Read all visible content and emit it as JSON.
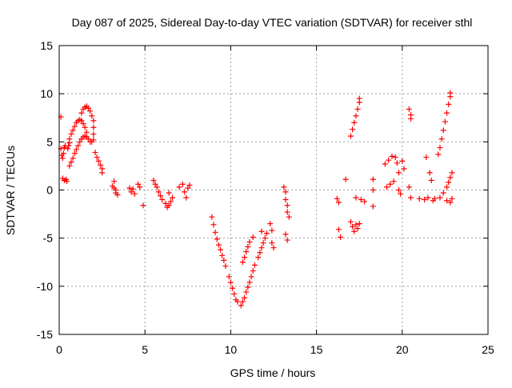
{
  "chart_data": {
    "type": "scatter",
    "title": "Day 087 of 2025, Sidereal Day-to-day VTEC variation (SDTVAR) for receiver sthl",
    "xlabel": "GPS time / hours",
    "ylabel": "SDTVAR / TECUs",
    "xlim": [
      0,
      25
    ],
    "ylim": [
      -15,
      15
    ],
    "xticks": [
      0,
      5,
      10,
      15,
      20,
      25
    ],
    "yticks": [
      -15,
      -10,
      -5,
      0,
      5,
      10,
      15
    ],
    "xtick_labels": [
      "0",
      "5",
      "10",
      "15",
      "20",
      "25"
    ],
    "ytick_labels": [
      "-15",
      "-10",
      "-5",
      "0",
      "5",
      "10",
      "15"
    ],
    "grid": true,
    "marker": "+",
    "color": "#ff0000",
    "series": [
      {
        "name": "sthl",
        "points": [
          [
            0.1,
            7.6
          ],
          [
            0.1,
            4.3
          ],
          [
            0.15,
            3.6
          ],
          [
            0.2,
            3.3
          ],
          [
            0.25,
            3.8
          ],
          [
            0.3,
            4.4
          ],
          [
            0.35,
            4.6
          ],
          [
            0.2,
            1.2
          ],
          [
            0.3,
            1.0
          ],
          [
            0.4,
            1.1
          ],
          [
            0.45,
            0.9
          ],
          [
            0.5,
            4.3
          ],
          [
            0.55,
            4.6
          ],
          [
            0.6,
            4.9
          ],
          [
            0.6,
            2.5
          ],
          [
            0.7,
            2.9
          ],
          [
            0.8,
            3.3
          ],
          [
            0.9,
            3.8
          ],
          [
            1.0,
            4.2
          ],
          [
            1.1,
            4.6
          ],
          [
            1.2,
            5.0
          ],
          [
            1.3,
            5.3
          ],
          [
            1.4,
            5.5
          ],
          [
            1.5,
            5.6
          ],
          [
            1.6,
            5.5
          ],
          [
            1.7,
            5.3
          ],
          [
            1.8,
            5.0
          ],
          [
            1.9,
            5.0
          ],
          [
            0.6,
            5.3
          ],
          [
            0.7,
            5.8
          ],
          [
            0.8,
            6.2
          ],
          [
            0.9,
            6.6
          ],
          [
            1.0,
            7.0
          ],
          [
            1.1,
            7.2
          ],
          [
            1.2,
            7.3
          ],
          [
            1.3,
            7.2
          ],
          [
            1.4,
            6.9
          ],
          [
            1.5,
            6.5
          ],
          [
            1.6,
            6.0
          ],
          [
            1.3,
            8.0
          ],
          [
            1.4,
            8.4
          ],
          [
            1.5,
            8.6
          ],
          [
            1.6,
            8.7
          ],
          [
            1.7,
            8.5
          ],
          [
            1.8,
            8.2
          ],
          [
            1.9,
            7.7
          ],
          [
            2.0,
            7.2
          ],
          [
            2.0,
            6.5
          ],
          [
            2.0,
            5.8
          ],
          [
            2.0,
            5.2
          ],
          [
            2.1,
            3.9
          ],
          [
            2.2,
            3.4
          ],
          [
            2.3,
            3.0
          ],
          [
            2.4,
            2.6
          ],
          [
            2.5,
            2.2
          ],
          [
            2.5,
            1.8
          ],
          [
            3.1,
            0.4
          ],
          [
            3.2,
            0.2
          ],
          [
            3.3,
            0.0
          ],
          [
            3.3,
            -0.3
          ],
          [
            3.4,
            -0.5
          ],
          [
            3.2,
            0.9
          ],
          [
            4.1,
            0.2
          ],
          [
            4.2,
            -0.2
          ],
          [
            4.3,
            0.1
          ],
          [
            4.4,
            -0.4
          ],
          [
            4.6,
            0.6
          ],
          [
            4.7,
            0.3
          ],
          [
            4.9,
            -1.6
          ],
          [
            5.5,
            1.0
          ],
          [
            5.6,
            0.6
          ],
          [
            5.7,
            0.3
          ],
          [
            5.8,
            -0.2
          ],
          [
            5.9,
            -0.6
          ],
          [
            6.0,
            -1.0
          ],
          [
            6.2,
            -1.4
          ],
          [
            6.3,
            -1.8
          ],
          [
            6.4,
            -1.6
          ],
          [
            6.5,
            -1.2
          ],
          [
            6.6,
            -0.8
          ],
          [
            6.4,
            -0.3
          ],
          [
            7.0,
            0.3
          ],
          [
            7.2,
            0.6
          ],
          [
            7.3,
            -0.2
          ],
          [
            7.4,
            -0.8
          ],
          [
            7.5,
            0.2
          ],
          [
            7.6,
            0.5
          ],
          [
            8.9,
            -2.8
          ],
          [
            9.0,
            -3.6
          ],
          [
            9.1,
            -4.4
          ],
          [
            9.2,
            -5.1
          ],
          [
            9.3,
            -5.7
          ],
          [
            9.4,
            -6.2
          ],
          [
            9.5,
            -6.8
          ],
          [
            9.6,
            -7.3
          ],
          [
            9.7,
            -7.9
          ],
          [
            9.9,
            -9.0
          ],
          [
            10.0,
            -9.6
          ],
          [
            10.1,
            -10.2
          ],
          [
            10.2,
            -10.8
          ],
          [
            10.3,
            -11.4
          ],
          [
            10.4,
            -11.6
          ],
          [
            10.6,
            -12.0
          ],
          [
            10.7,
            -11.6
          ],
          [
            10.8,
            -11.2
          ],
          [
            10.9,
            -10.6
          ],
          [
            11.0,
            -10.1
          ],
          [
            11.1,
            -9.6
          ],
          [
            11.2,
            -9.0
          ],
          [
            11.3,
            -8.4
          ],
          [
            11.4,
            -7.8
          ],
          [
            10.7,
            -7.5
          ],
          [
            10.8,
            -7.0
          ],
          [
            10.9,
            -6.4
          ],
          [
            11.0,
            -5.9
          ],
          [
            11.1,
            -5.4
          ],
          [
            11.3,
            -4.9
          ],
          [
            11.6,
            -7.0
          ],
          [
            11.7,
            -6.5
          ],
          [
            11.8,
            -6.0
          ],
          [
            11.9,
            -5.5
          ],
          [
            12.0,
            -5.0
          ],
          [
            12.1,
            -4.5
          ],
          [
            11.8,
            -4.3
          ],
          [
            12.3,
            -3.5
          ],
          [
            12.4,
            -4.2
          ],
          [
            12.4,
            -5.5
          ],
          [
            12.5,
            -6.0
          ],
          [
            13.1,
            0.3
          ],
          [
            13.2,
            -0.2
          ],
          [
            13.2,
            -1.0
          ],
          [
            13.3,
            -1.6
          ],
          [
            13.3,
            -2.3
          ],
          [
            13.4,
            -2.8
          ],
          [
            13.2,
            -4.6
          ],
          [
            13.3,
            -5.2
          ],
          [
            16.2,
            -0.9
          ],
          [
            16.3,
            -1.3
          ],
          [
            16.3,
            -4.1
          ],
          [
            16.4,
            -4.9
          ],
          [
            16.7,
            1.1
          ],
          [
            17.0,
            -3.3
          ],
          [
            17.1,
            -3.8
          ],
          [
            17.2,
            -4.3
          ],
          [
            17.3,
            -3.6
          ],
          [
            17.4,
            -4.0
          ],
          [
            17.5,
            -3.5
          ],
          [
            17.0,
            5.6
          ],
          [
            17.1,
            6.3
          ],
          [
            17.2,
            7.0
          ],
          [
            17.3,
            7.7
          ],
          [
            17.4,
            8.4
          ],
          [
            17.5,
            9.1
          ],
          [
            17.5,
            9.5
          ],
          [
            17.3,
            -0.8
          ],
          [
            17.6,
            -1.0
          ],
          [
            17.8,
            -1.2
          ],
          [
            18.3,
            1.1
          ],
          [
            18.3,
            0.0
          ],
          [
            18.3,
            -1.7
          ],
          [
            19.0,
            2.7
          ],
          [
            19.2,
            3.1
          ],
          [
            19.4,
            3.5
          ],
          [
            19.6,
            3.4
          ],
          [
            19.7,
            2.8
          ],
          [
            19.8,
            1.8
          ],
          [
            19.1,
            0.3
          ],
          [
            19.3,
            0.6
          ],
          [
            19.5,
            0.9
          ],
          [
            19.8,
            0.0
          ],
          [
            19.9,
            -0.4
          ],
          [
            20.0,
            3.0
          ],
          [
            20.1,
            2.2
          ],
          [
            20.4,
            8.4
          ],
          [
            20.5,
            7.8
          ],
          [
            20.5,
            7.4
          ],
          [
            20.4,
            0.3
          ],
          [
            20.5,
            -0.8
          ],
          [
            21.0,
            -0.9
          ],
          [
            21.3,
            -1.0
          ],
          [
            21.4,
            3.4
          ],
          [
            21.5,
            -0.8
          ],
          [
            21.6,
            1.8
          ],
          [
            21.7,
            1.0
          ],
          [
            21.8,
            -1.1
          ],
          [
            21.9,
            -0.9
          ],
          [
            22.1,
            3.7
          ],
          [
            22.2,
            4.4
          ],
          [
            22.3,
            5.3
          ],
          [
            22.4,
            6.2
          ],
          [
            22.5,
            7.1
          ],
          [
            22.6,
            8.0
          ],
          [
            22.7,
            8.9
          ],
          [
            22.8,
            9.7
          ],
          [
            22.8,
            10.1
          ],
          [
            22.2,
            -0.8
          ],
          [
            22.4,
            -0.3
          ],
          [
            22.6,
            0.3
          ],
          [
            22.7,
            0.8
          ],
          [
            22.8,
            1.3
          ],
          [
            22.9,
            1.8
          ],
          [
            22.6,
            -1.1
          ],
          [
            22.8,
            -1.3
          ],
          [
            22.9,
            -0.9
          ]
        ]
      }
    ]
  }
}
